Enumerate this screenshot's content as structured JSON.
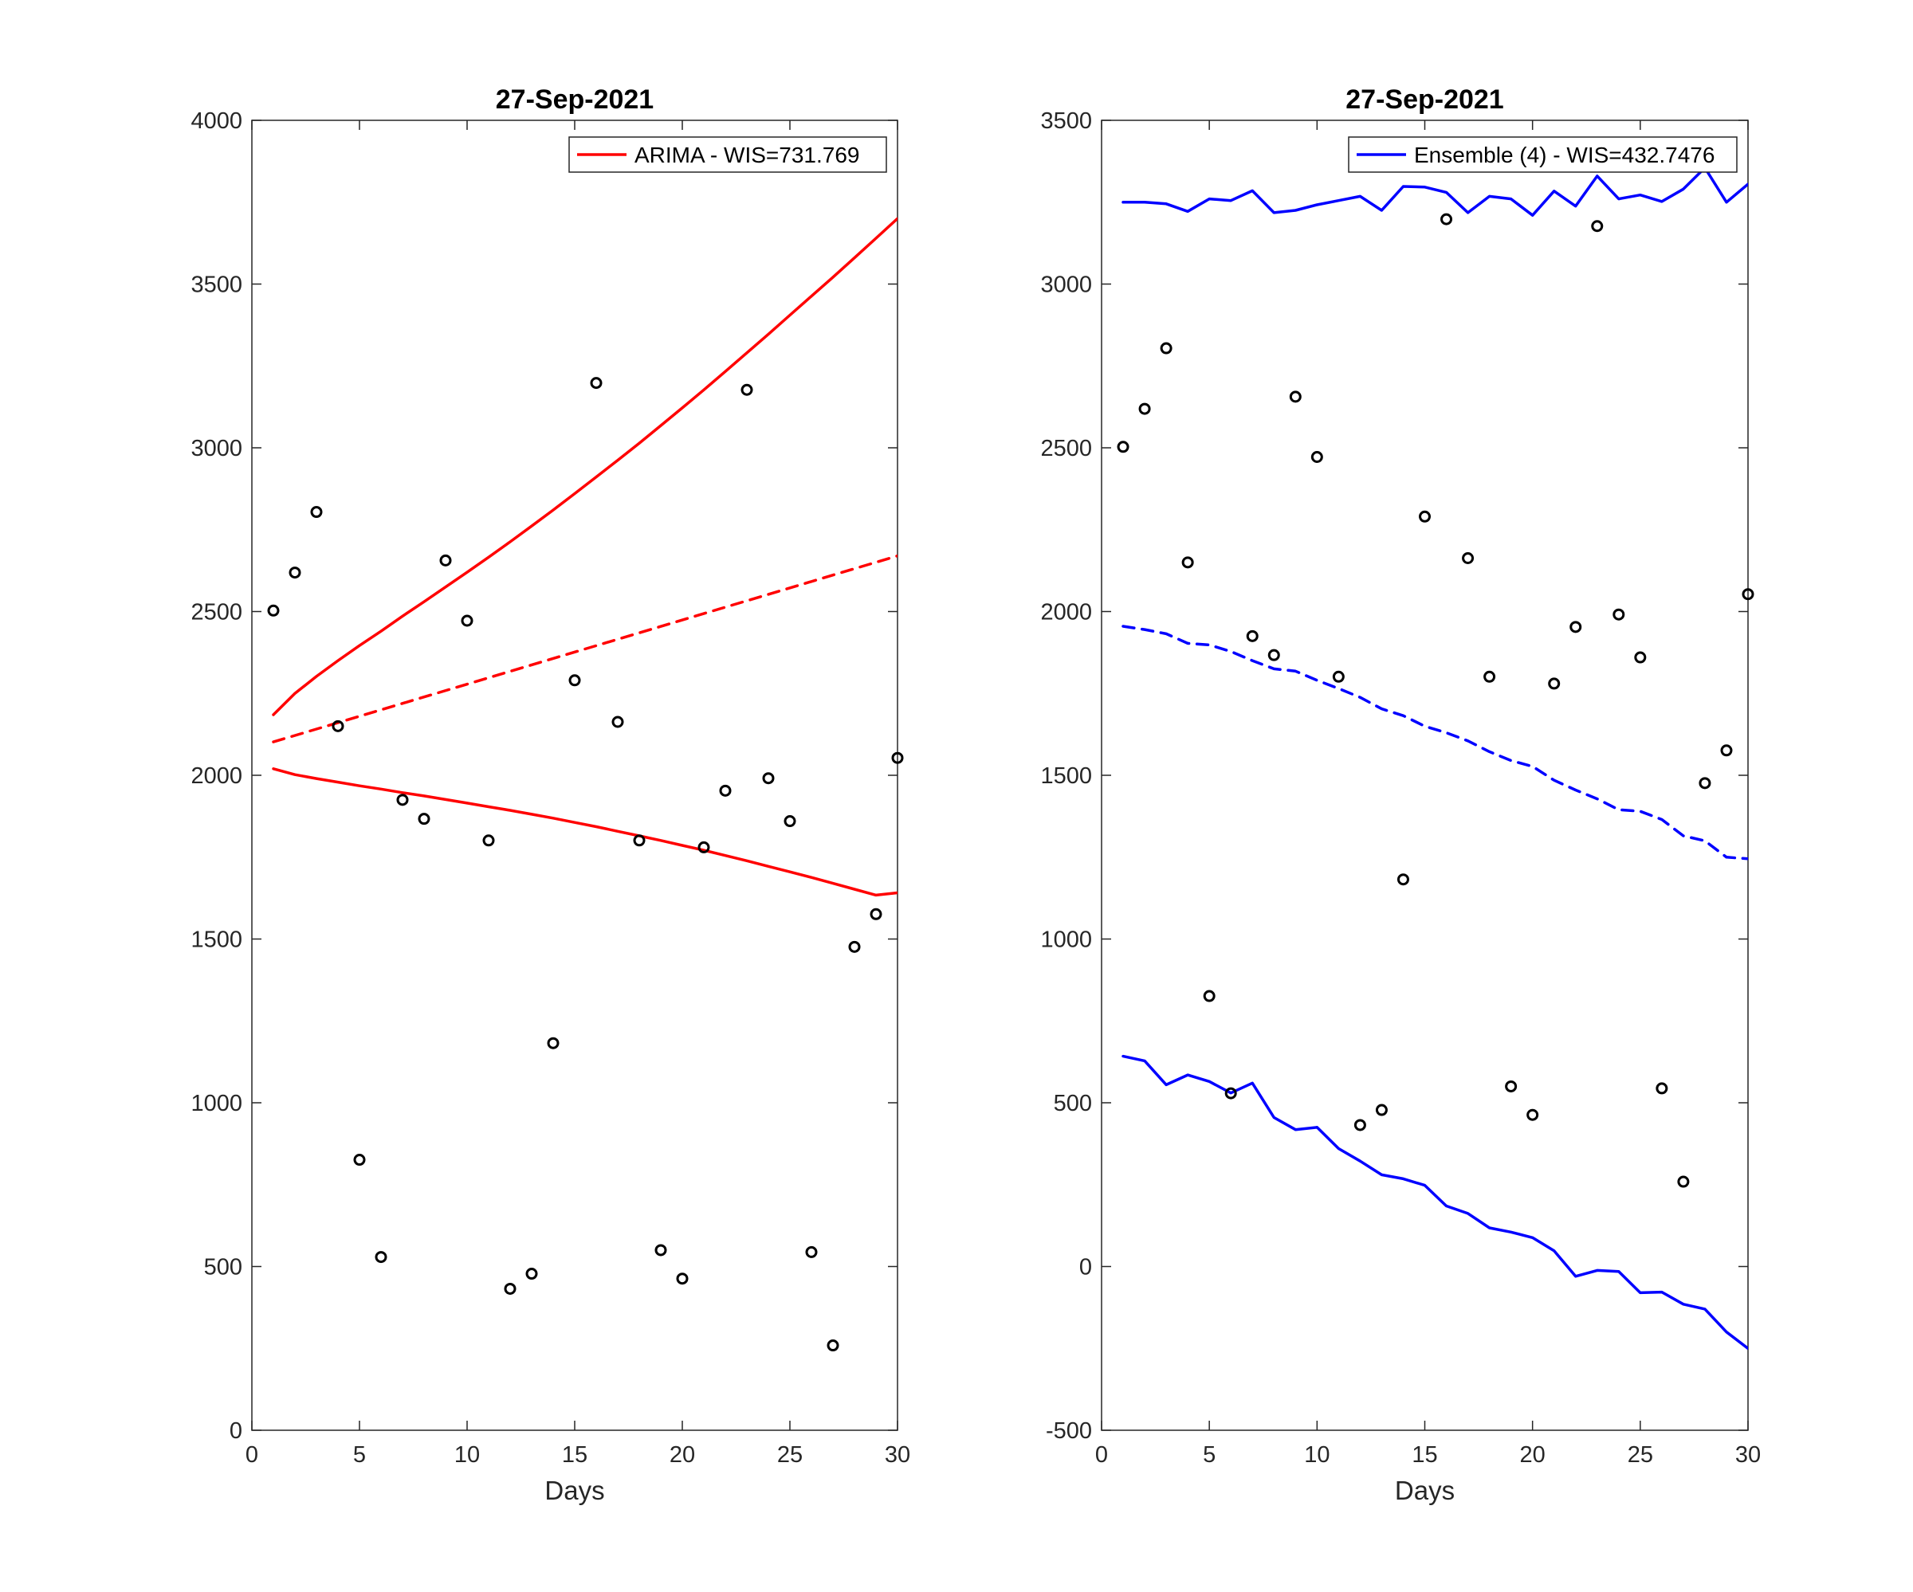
{
  "colors": {
    "arima": "#ff0000",
    "ensemble": "#0000ff",
    "observed": "#000000",
    "axes": "#262626",
    "legend_border": "#262626"
  },
  "chart_data": [
    {
      "type": "line",
      "title": "27-Sep-2021",
      "xlabel": "Days",
      "ylabel": "",
      "xlim": [
        0,
        30
      ],
      "ylim": [
        0,
        4000
      ],
      "xticks": [
        0,
        5,
        10,
        15,
        20,
        25,
        30
      ],
      "yticks": [
        0,
        500,
        1000,
        1500,
        2000,
        2500,
        3000,
        3500,
        4000
      ],
      "grid": false,
      "legend_position": "top-right",
      "legend": [
        "ARIMA - WIS=731.769"
      ],
      "observed": {
        "x": [
          1,
          2,
          3,
          4,
          5,
          6,
          7,
          8,
          9,
          10,
          11,
          12,
          13,
          14,
          15,
          16,
          17,
          18,
          19,
          20,
          21,
          22,
          23,
          24,
          25,
          26,
          27,
          28,
          29,
          30
        ],
        "y": [
          2503,
          2619,
          2804,
          2150,
          826,
          529,
          1925,
          1867,
          2656,
          2472,
          1801,
          432,
          478,
          1182,
          2290,
          3198,
          2163,
          1801,
          550,
          463,
          1780,
          1953,
          3177,
          1991,
          1860,
          544,
          259,
          1476,
          1576,
          2053
        ]
      },
      "series": [
        {
          "name": "ARIMA - WIS=731.769",
          "style": "solid",
          "color": "#ff0000",
          "x": [
            1,
            2,
            3,
            4,
            5,
            6,
            7,
            8,
            9,
            10,
            11,
            12,
            13,
            14,
            15,
            16,
            17,
            18,
            19,
            20,
            21,
            22,
            23,
            24,
            25,
            26,
            27,
            28,
            29,
            30
          ],
          "y": [
            2185,
            2250,
            2302,
            2350,
            2396,
            2440,
            2486,
            2530,
            2575,
            2620,
            2666,
            2713,
            2761,
            2810,
            2860,
            2911,
            2962,
            3014,
            3068,
            3122,
            3177,
            3233,
            3290,
            3347,
            3405,
            3463,
            3521,
            3580,
            3640,
            3700
          ]
        },
        {
          "style": "dashed",
          "color": "#ff0000",
          "x": [
            1,
            30
          ],
          "y": [
            2102,
            2670
          ]
        },
        {
          "style": "solid",
          "color": "#ff0000",
          "x": [
            1,
            2,
            3,
            4,
            5,
            6,
            7,
            8,
            9,
            10,
            11,
            12,
            13,
            14,
            15,
            16,
            17,
            18,
            19,
            20,
            21,
            22,
            23,
            24,
            25,
            26,
            27,
            28,
            29,
            30
          ],
          "y": [
            2020,
            2002,
            1990,
            1979,
            1968,
            1958,
            1947,
            1937,
            1926,
            1915,
            1904,
            1893,
            1881,
            1869,
            1856,
            1843,
            1829,
            1815,
            1801,
            1786,
            1771,
            1755,
            1739,
            1722,
            1705,
            1688,
            1670,
            1652,
            1634,
            1641
          ]
        }
      ]
    },
    {
      "type": "line",
      "title": "27-Sep-2021",
      "xlabel": "Days",
      "ylabel": "",
      "xlim": [
        0,
        30
      ],
      "ylim": [
        -500,
        3500
      ],
      "xticks": [
        0,
        5,
        10,
        15,
        20,
        25,
        30
      ],
      "yticks": [
        -500,
        0,
        500,
        1000,
        1500,
        2000,
        2500,
        3000,
        3500
      ],
      "grid": false,
      "legend_position": "top-right",
      "legend": [
        "Ensemble (4) - WIS=432.7476"
      ],
      "observed": {
        "x": [
          1,
          2,
          3,
          4,
          5,
          6,
          7,
          8,
          9,
          10,
          11,
          12,
          13,
          14,
          15,
          16,
          17,
          18,
          19,
          20,
          21,
          22,
          23,
          24,
          25,
          26,
          27,
          28,
          29,
          30
        ],
        "y": [
          2503,
          2619,
          2804,
          2150,
          826,
          529,
          1925,
          1867,
          2656,
          2472,
          1801,
          432,
          478,
          1182,
          2290,
          3198,
          2163,
          1801,
          550,
          463,
          1780,
          1953,
          3177,
          1991,
          1860,
          544,
          259,
          1476,
          1576,
          2053
        ]
      },
      "series": [
        {
          "name": "Ensemble (4) - WIS=432.7476",
          "style": "solid",
          "color": "#0000ff",
          "x": [
            1,
            2,
            3,
            4,
            5,
            6,
            7,
            8,
            9,
            10,
            11,
            12,
            13,
            14,
            15,
            16,
            17,
            18,
            19,
            20,
            21,
            22,
            23,
            24,
            25,
            26,
            27,
            28,
            29,
            30
          ],
          "y": [
            3250,
            3250,
            3245,
            3222,
            3260,
            3255,
            3285,
            3218,
            3225,
            3242,
            3255,
            3268,
            3225,
            3298,
            3296,
            3280,
            3218,
            3268,
            3260,
            3210,
            3284,
            3238,
            3330,
            3260,
            3272,
            3252,
            3290,
            3355,
            3250,
            3305
          ]
        },
        {
          "style": "dashed",
          "color": "#0000ff",
          "x": [
            1,
            2,
            3,
            4,
            5,
            6,
            7,
            8,
            9,
            10,
            11,
            12,
            13,
            14,
            15,
            16,
            17,
            18,
            19,
            20,
            21,
            22,
            23,
            24,
            25,
            26,
            27,
            28,
            29,
            30
          ],
          "y": [
            1955,
            1945,
            1932,
            1903,
            1898,
            1878,
            1850,
            1825,
            1818,
            1790,
            1765,
            1738,
            1703,
            1682,
            1650,
            1630,
            1605,
            1572,
            1545,
            1527,
            1485,
            1455,
            1428,
            1395,
            1390,
            1365,
            1315,
            1300,
            1250,
            1245
          ]
        },
        {
          "style": "solid",
          "color": "#0000ff",
          "x": [
            1,
            2,
            3,
            4,
            5,
            6,
            7,
            8,
            9,
            10,
            11,
            12,
            13,
            14,
            15,
            16,
            17,
            18,
            19,
            20,
            21,
            22,
            23,
            24,
            25,
            26,
            27,
            28,
            29,
            30
          ],
          "y": [
            642,
            628,
            555,
            585,
            565,
            530,
            560,
            455,
            418,
            425,
            360,
            322,
            280,
            268,
            248,
            185,
            162,
            118,
            105,
            88,
            48,
            -30,
            -12,
            -15,
            -80,
            -78,
            -115,
            -130,
            -200,
            -250
          ]
        }
      ]
    }
  ]
}
